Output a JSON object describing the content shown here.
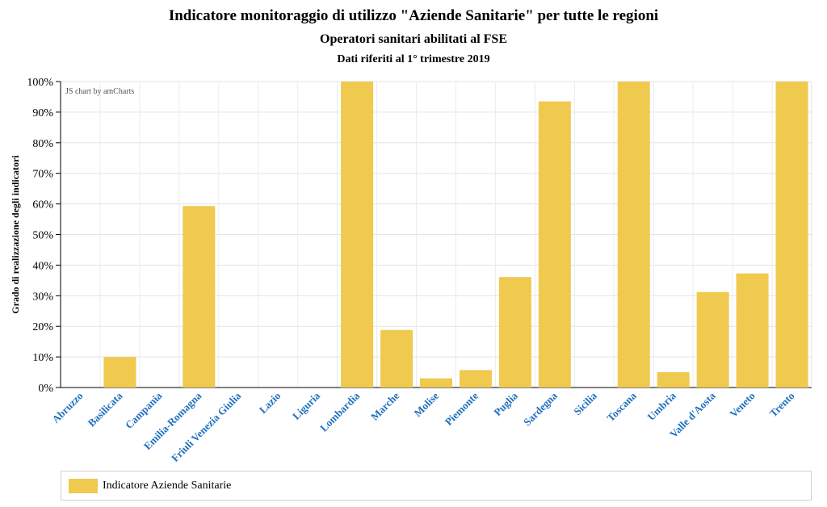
{
  "chart_data": {
    "type": "bar",
    "title": "Indicatore monitoraggio di utilizzo \"Aziende Sanitarie\" per tutte le regioni",
    "subtitle": "Operatori sanitari abilitati al FSE",
    "note": "Dati riferiti al 1° trimestre 2019",
    "credit": "JS chart by amCharts",
    "ylabel": "Grado di realizzazione degli indicatori",
    "xlabel": "",
    "ylim": [
      0,
      100
    ],
    "y_ticks": [
      "0%",
      "10%",
      "20%",
      "30%",
      "40%",
      "50%",
      "60%",
      "70%",
      "80%",
      "90%",
      "100%"
    ],
    "grid": true,
    "bar_color": "#f0c94f",
    "category_label_color": "#1f6fbf",
    "categories": [
      "Abruzzo",
      "Basilicata",
      "Campania",
      "Emilia-Romagna",
      "Friuli Venezia Giulia",
      "Lazio",
      "Liguria",
      "Lombardia",
      "Marche",
      "Molise",
      "Piemonte",
      "Puglia",
      "Sardegna",
      "Sicilia",
      "Toscana",
      "Umbria",
      "Valle d'Aosta",
      "Veneto",
      "Trento"
    ],
    "series": [
      {
        "name": "Indicatore Aziende Sanitarie",
        "values": [
          0,
          10,
          0,
          59.3,
          0,
          0,
          0,
          100,
          18.8,
          3,
          5.7,
          36.1,
          93.5,
          0,
          100,
          5,
          31.2,
          37.3,
          100
        ]
      }
    ],
    "legend": {
      "position": "bottom",
      "label": "Indicatore Aziende Sanitarie"
    }
  }
}
